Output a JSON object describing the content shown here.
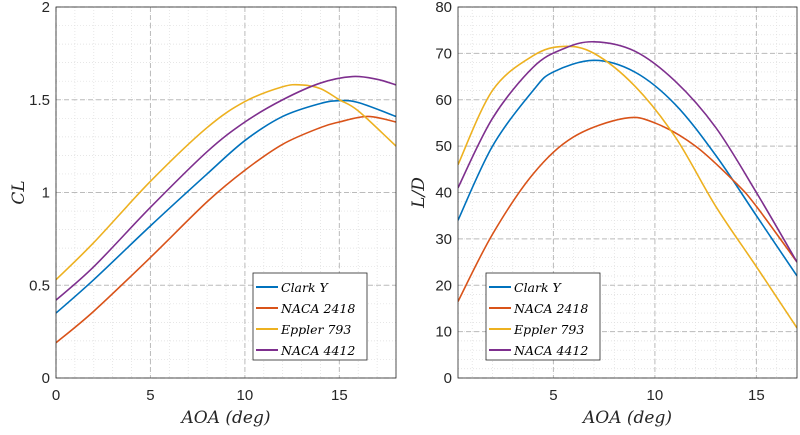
{
  "chart_data": [
    {
      "type": "line",
      "xlabel": "AOA (deg)",
      "ylabel": "C_L",
      "xlim": [
        0,
        18
      ],
      "ylim": [
        0,
        2
      ],
      "xticks": [
        0,
        5,
        10,
        15
      ],
      "xtick_labels": [
        "0",
        "5",
        "10",
        "15"
      ],
      "yticks": [
        0,
        0.5,
        1,
        1.5,
        2
      ],
      "ytick_labels": [
        "0",
        "0.5",
        "1",
        "1.5",
        "2"
      ],
      "grid": "major dashed, minor dotted",
      "legend": "bottom-right",
      "series": [
        {
          "name": "Clark Y",
          "color": "#0072BD",
          "x": [
            0,
            2,
            5,
            8,
            10,
            12,
            14,
            15,
            16,
            18
          ],
          "y": [
            0.35,
            0.53,
            0.82,
            1.1,
            1.28,
            1.41,
            1.48,
            1.495,
            1.485,
            1.41
          ]
        },
        {
          "name": "NACA 2418",
          "color": "#D95319",
          "x": [
            0,
            2,
            5,
            8,
            10,
            12,
            14,
            15,
            16.5,
            18
          ],
          "y": [
            0.19,
            0.36,
            0.65,
            0.95,
            1.12,
            1.26,
            1.35,
            1.38,
            1.41,
            1.38
          ]
        },
        {
          "name": "Eppler 793",
          "color": "#EDB120",
          "x": [
            0,
            2,
            5,
            8,
            10,
            12,
            13,
            14,
            15,
            16,
            18
          ],
          "y": [
            0.53,
            0.73,
            1.06,
            1.35,
            1.49,
            1.57,
            1.58,
            1.56,
            1.5,
            1.44,
            1.25
          ]
        },
        {
          "name": "NACA 4412",
          "color": "#7E2F8E",
          "x": [
            0,
            2,
            5,
            8,
            10,
            12,
            14,
            15.7,
            17,
            18
          ],
          "y": [
            0.42,
            0.6,
            0.92,
            1.22,
            1.38,
            1.5,
            1.59,
            1.625,
            1.61,
            1.58
          ]
        }
      ]
    },
    {
      "type": "line",
      "xlabel": "AOA (deg)",
      "ylabel": "L/D",
      "xlim": [
        0.3,
        17
      ],
      "ylim": [
        0,
        80
      ],
      "xticks": [
        5,
        10,
        15
      ],
      "xtick_labels": [
        "5",
        "10",
        "15"
      ],
      "yticks": [
        0,
        10,
        20,
        30,
        40,
        50,
        60,
        70,
        80
      ],
      "ytick_labels": [
        "0",
        "10",
        "20",
        "30",
        "40",
        "50",
        "60",
        "70",
        "80"
      ],
      "grid": "major dashed, minor dotted",
      "legend": "bottom-left",
      "series": [
        {
          "name": "Clark Y",
          "color": "#0072BD",
          "x": [
            0.3,
            2,
            4,
            5,
            7,
            9,
            11,
            13,
            15,
            17
          ],
          "y": [
            34,
            50,
            62,
            66,
            68.5,
            66,
            59,
            48,
            35,
            22
          ]
        },
        {
          "name": "NACA 2418",
          "color": "#D95319",
          "x": [
            0.3,
            2,
            4,
            6,
            8.5,
            10,
            12,
            14,
            15,
            17
          ],
          "y": [
            16.5,
            31,
            44,
            52,
            56,
            55,
            50,
            42,
            37,
            25
          ]
        },
        {
          "name": "Eppler 793",
          "color": "#EDB120",
          "x": [
            0.3,
            2,
            4,
            5.5,
            7,
            9,
            11,
            13,
            15,
            17
          ],
          "y": [
            46,
            62,
            69.5,
            71.5,
            70,
            63,
            52,
            37,
            24,
            10.8
          ]
        },
        {
          "name": "NACA 4412",
          "color": "#7E2F8E",
          "x": [
            0.3,
            2,
            4,
            5.5,
            7,
            9,
            11,
            13,
            15,
            17
          ],
          "y": [
            41,
            56,
            67,
            71,
            72.5,
            70.5,
            64,
            54,
            40,
            25
          ]
        }
      ]
    }
  ]
}
